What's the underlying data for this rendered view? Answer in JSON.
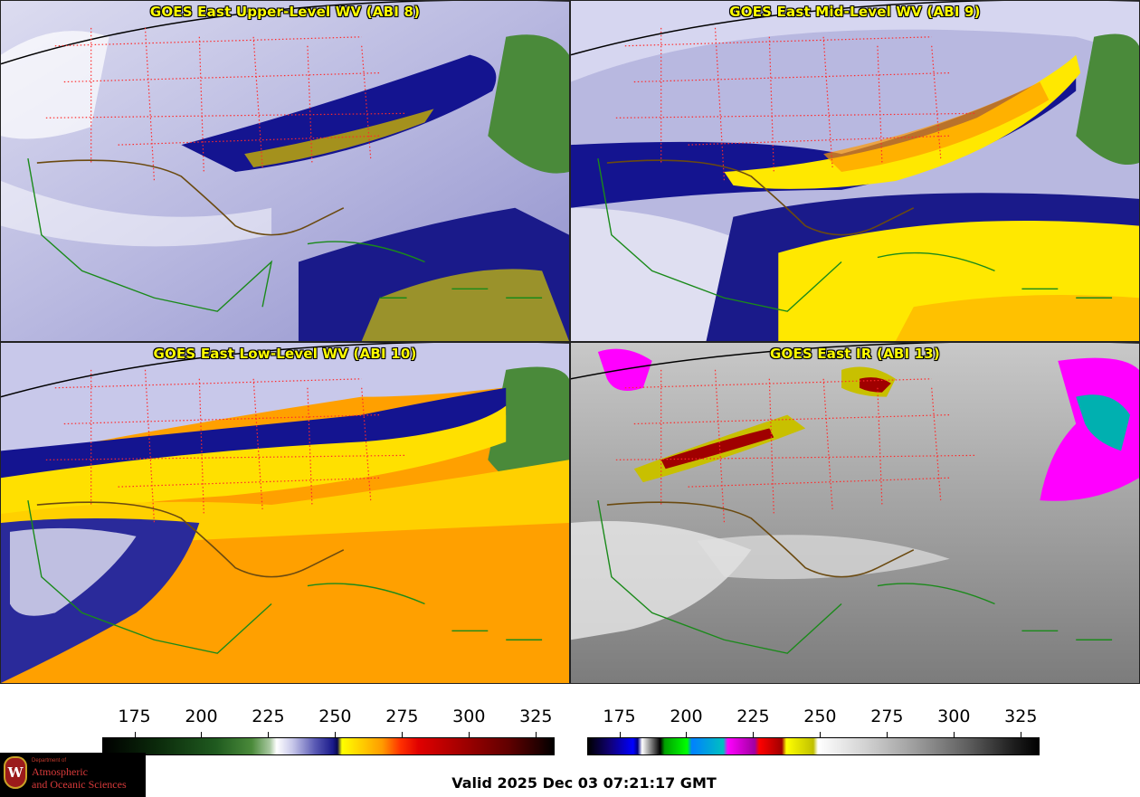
{
  "panels": [
    {
      "id": "p1",
      "title": "GOES East Upper-Level WV (ABI 8)",
      "scheme": "wv-upper"
    },
    {
      "id": "p2",
      "title": "GOES East Mid-Level WV (ABI 9)",
      "scheme": "wv-mid"
    },
    {
      "id": "p3",
      "title": "GOES East Low-Level WV (ABI 10)",
      "scheme": "wv-low"
    },
    {
      "id": "p4",
      "title": "GOES East IR (ABI 13)",
      "scheme": "ir"
    }
  ],
  "colorbars": {
    "left": {
      "ticks": [
        "175",
        "200",
        "225",
        "250",
        "275",
        "300",
        "325"
      ],
      "min": 163,
      "max": 332
    },
    "right": {
      "ticks": [
        "175",
        "200",
        "225",
        "250",
        "275",
        "300",
        "325"
      ],
      "min": 163,
      "max": 332
    }
  },
  "footer": {
    "valid_text": "Valid 2025 Dec 03 07:21:17 GMT",
    "logo": {
      "dept": "Department of",
      "line1": "Atmospheric",
      "line2": "and Oceanic Sciences",
      "seal_letter": "W"
    }
  },
  "colors": {
    "title_yellow": "#ffff00",
    "state_border": "#ff2a2a",
    "coast_land": "#6b4a10",
    "coast_island": "#1a8a1a"
  }
}
